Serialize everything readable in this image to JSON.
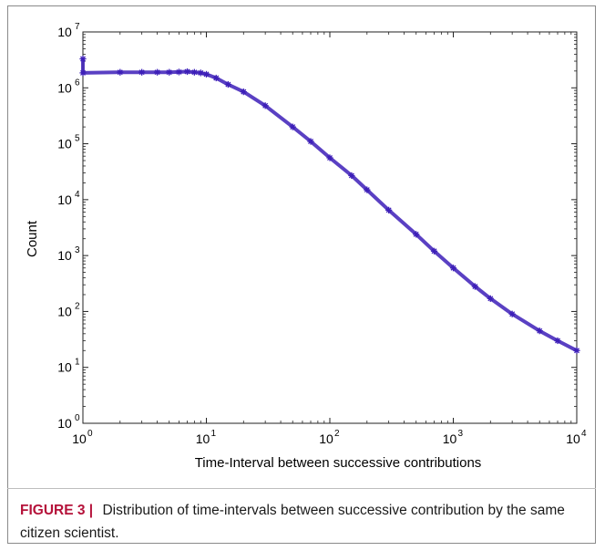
{
  "figure": {
    "label": "FIGURE 3",
    "separator": "|",
    "caption": "Distribution of time-intervals between successive contribution by the same citizen scientist."
  },
  "chart_data": {
    "type": "scatter",
    "title": "",
    "xlabel": "Time-Interval between successive contributions",
    "ylabel": "Count",
    "x_scale": "log",
    "y_scale": "log",
    "xlim": [
      1,
      10000
    ],
    "ylim": [
      1,
      10000000
    ],
    "x_ticks": [
      {
        "value": 1,
        "base": "10",
        "exp": "0"
      },
      {
        "value": 10,
        "base": "10",
        "exp": "1"
      },
      {
        "value": 100,
        "base": "10",
        "exp": "2"
      },
      {
        "value": 1000,
        "base": "10",
        "exp": "3"
      },
      {
        "value": 10000,
        "base": "10",
        "exp": "4"
      }
    ],
    "y_ticks": [
      {
        "value": 1,
        "base": "10",
        "exp": "0"
      },
      {
        "value": 10,
        "base": "10",
        "exp": "1"
      },
      {
        "value": 100,
        "base": "10",
        "exp": "2"
      },
      {
        "value": 1000,
        "base": "10",
        "exp": "3"
      },
      {
        "value": 10000,
        "base": "10",
        "exp": "4"
      },
      {
        "value": 100000,
        "base": "10",
        "exp": "5"
      },
      {
        "value": 1000000,
        "base": "10",
        "exp": "6"
      },
      {
        "value": 10000000,
        "base": "10",
        "exp": "7"
      }
    ],
    "grid": false,
    "marker": "asterisk",
    "color": "#3d1fb8",
    "series": [
      {
        "points": [
          [
            1,
            3300000
          ],
          [
            1,
            1850000
          ],
          [
            2,
            1900000
          ],
          [
            3,
            1900000
          ],
          [
            4,
            1900000
          ],
          [
            5,
            1900000
          ],
          [
            6,
            1920000
          ],
          [
            7,
            1950000
          ],
          [
            8,
            1900000
          ],
          [
            9,
            1850000
          ],
          [
            10,
            1750000
          ],
          [
            12,
            1500000
          ],
          [
            15,
            1150000
          ],
          [
            20,
            850000
          ],
          [
            30,
            480000
          ],
          [
            50,
            200000
          ],
          [
            70,
            110000
          ],
          [
            100,
            56000
          ],
          [
            150,
            27000
          ],
          [
            200,
            15000
          ],
          [
            300,
            6500
          ],
          [
            500,
            2400
          ],
          [
            700,
            1200
          ],
          [
            1000,
            600
          ],
          [
            1500,
            280
          ],
          [
            2000,
            170
          ],
          [
            3000,
            90
          ],
          [
            5000,
            45
          ],
          [
            7000,
            30
          ],
          [
            10000,
            20
          ]
        ]
      }
    ]
  }
}
